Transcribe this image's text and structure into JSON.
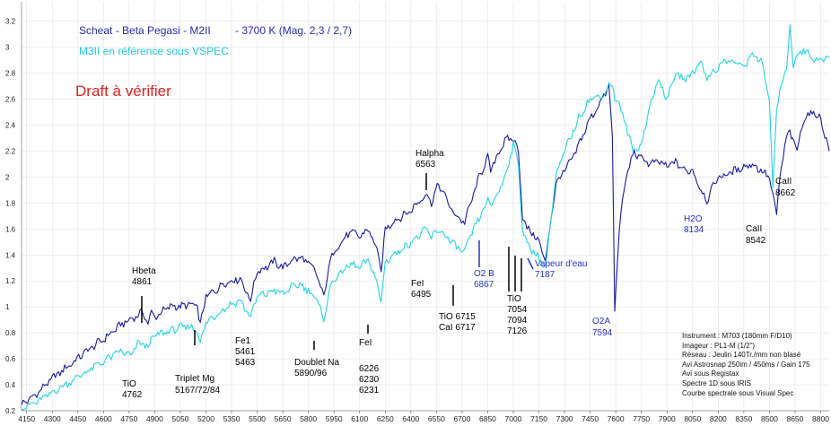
{
  "chart_data": {
    "type": "line",
    "title": "Scheat - Beta Pegasi - M2II",
    "title_suffix": "- 3700 K (Mag. 2,3 / 2,7)",
    "subtitle": "M3II en référence sous VSPEC",
    "draft_note": "Draft à vérifier",
    "xlim": [
      4120,
      8850
    ],
    "ylim": [
      0.2,
      3.35
    ],
    "x_ticks": [
      4150,
      4300,
      4450,
      4600,
      4750,
      4900,
      5050,
      5200,
      5350,
      5500,
      5650,
      5800,
      5950,
      6100,
      6250,
      6400,
      6550,
      6700,
      6850,
      7000,
      7150,
      7300,
      7450,
      7600,
      7750,
      7900,
      8050,
      8200,
      8350,
      8500,
      8650,
      8800
    ],
    "y_ticks": [
      0.2,
      0.4,
      0.6,
      0.8,
      1.0,
      1.2,
      1.4,
      1.6,
      1.8,
      2.0,
      2.2,
      2.4,
      2.6,
      2.8,
      3.0,
      3.2
    ],
    "y_tick_labels": [
      "0.2",
      "0.4",
      "0.6",
      "0.8",
      "1",
      "1.2",
      "1.4",
      "1.6",
      "1.8",
      "2",
      "2.2",
      "2.4",
      "2.6",
      "2.8",
      "3",
      "3.2"
    ],
    "series": [
      {
        "name": "Scheat - Beta Pegasi - M2II",
        "color": "#1a1aa0",
        "x": [
          4120,
          4200,
          4300,
          4400,
          4500,
          4600,
          4700,
          4780,
          4830,
          4861,
          4880,
          4900,
          4950,
          5000,
          5050,
          5100,
          5150,
          5167,
          5200,
          5250,
          5300,
          5350,
          5400,
          5461,
          5500,
          5550,
          5600,
          5650,
          5700,
          5750,
          5800,
          5850,
          5890,
          5930,
          5980,
          6050,
          6100,
          6150,
          6200,
          6226,
          6250,
          6300,
          6350,
          6400,
          6450,
          6495,
          6520,
          6563,
          6600,
          6650,
          6715,
          6750,
          6800,
          6850,
          6867,
          6900,
          6950,
          7000,
          7030,
          7054,
          7080,
          7100,
          7126,
          7150,
          7187,
          7250,
          7300,
          7350,
          7400,
          7450,
          7500,
          7540,
          7560,
          7580,
          7594,
          7620,
          7660,
          7700,
          7750,
          7800,
          7850,
          7900,
          7950,
          8000,
          8050,
          8100,
          8134,
          8160,
          8200,
          8250,
          8300,
          8350,
          8400,
          8450,
          8500,
          8520,
          8542,
          8560,
          8600,
          8620,
          8662,
          8700,
          8750,
          8800,
          8850
        ],
        "y": [
          0.25,
          0.32,
          0.45,
          0.55,
          0.66,
          0.75,
          0.86,
          0.92,
          0.96,
          0.88,
          0.95,
          0.92,
          0.97,
          1.01,
          1.0,
          1.02,
          1.0,
          0.86,
          1.08,
          1.12,
          1.18,
          1.2,
          1.22,
          1.05,
          1.28,
          1.3,
          1.35,
          1.3,
          1.36,
          1.38,
          1.34,
          1.25,
          1.07,
          1.38,
          1.48,
          1.58,
          1.54,
          1.6,
          1.45,
          1.27,
          1.6,
          1.66,
          1.7,
          1.74,
          1.82,
          1.87,
          1.8,
          1.95,
          1.85,
          1.72,
          1.65,
          1.8,
          2.0,
          2.15,
          2.05,
          2.15,
          2.28,
          2.3,
          2.2,
          1.7,
          1.6,
          1.58,
          1.55,
          1.5,
          1.35,
          1.95,
          2.05,
          2.15,
          2.3,
          2.45,
          2.55,
          2.65,
          2.7,
          2.3,
          0.98,
          1.6,
          2.0,
          2.18,
          2.15,
          2.1,
          2.12,
          2.08,
          2.12,
          2.05,
          2.05,
          1.9,
          1.82,
          1.9,
          2.0,
          2.02,
          2.05,
          2.08,
          2.1,
          2.05,
          2.0,
          1.85,
          1.7,
          2.0,
          2.3,
          2.35,
          2.2,
          2.45,
          2.5,
          2.45,
          2.2
        ]
      },
      {
        "name": "M3II en référence sous VSPEC",
        "color": "#22d4e0",
        "x": [
          4120,
          4200,
          4300,
          4400,
          4500,
          4600,
          4700,
          4762,
          4800,
          4861,
          4900,
          4950,
          5000,
          5050,
          5100,
          5150,
          5167,
          5200,
          5250,
          5300,
          5350,
          5400,
          5461,
          5500,
          5550,
          5600,
          5650,
          5700,
          5750,
          5800,
          5850,
          5890,
          5930,
          5980,
          6050,
          6100,
          6150,
          6200,
          6226,
          6250,
          6300,
          6350,
          6400,
          6450,
          6495,
          6520,
          6563,
          6600,
          6650,
          6715,
          6750,
          6800,
          6850,
          6867,
          6900,
          6950,
          7000,
          7030,
          7054,
          7080,
          7100,
          7126,
          7150,
          7187,
          7250,
          7300,
          7350,
          7400,
          7450,
          7500,
          7540,
          7560,
          7580,
          7594,
          7620,
          7660,
          7700,
          7750,
          7800,
          7850,
          7900,
          7950,
          8000,
          8050,
          8100,
          8134,
          8160,
          8200,
          8250,
          8300,
          8350,
          8400,
          8450,
          8500,
          8520,
          8542,
          8560,
          8600,
          8620,
          8640,
          8662,
          8700,
          8750,
          8800,
          8850
        ],
        "y": [
          0.22,
          0.26,
          0.34,
          0.42,
          0.5,
          0.58,
          0.66,
          0.62,
          0.72,
          0.7,
          0.78,
          0.8,
          0.82,
          0.84,
          0.85,
          0.82,
          0.72,
          0.88,
          0.93,
          0.98,
          1.02,
          1.05,
          0.92,
          1.08,
          1.1,
          1.13,
          1.1,
          1.15,
          1.17,
          1.13,
          1.05,
          0.9,
          1.17,
          1.25,
          1.33,
          1.3,
          1.36,
          1.2,
          1.03,
          1.35,
          1.4,
          1.45,
          1.5,
          1.55,
          1.6,
          1.53,
          1.6,
          1.55,
          1.48,
          1.42,
          1.55,
          1.68,
          1.82,
          1.78,
          1.85,
          2.0,
          2.25,
          2.1,
          1.6,
          1.48,
          1.45,
          1.42,
          1.38,
          1.3,
          2.0,
          2.2,
          2.35,
          2.5,
          2.6,
          2.62,
          2.65,
          2.72,
          2.7,
          2.62,
          2.55,
          2.4,
          2.2,
          2.25,
          2.55,
          2.75,
          2.6,
          2.8,
          2.75,
          2.8,
          2.9,
          2.75,
          2.8,
          2.85,
          2.9,
          2.88,
          2.85,
          2.95,
          2.9,
          2.6,
          1.9,
          2.5,
          2.7,
          2.8,
          3.2,
          2.85,
          2.95,
          2.98,
          2.92,
          2.9,
          2.92
        ]
      }
    ],
    "annotations": [
      {
        "lines": [
          "Hbeta",
          "4861"
        ],
        "color": "#000000"
      },
      {
        "lines": [
          "TiO",
          "4762"
        ],
        "color": "#000000"
      },
      {
        "lines": [
          "Triplet Mg",
          "5167/72/84"
        ],
        "color": "#000000"
      },
      {
        "lines": [
          "Fe1",
          "5461",
          "5463"
        ],
        "color": "#000000"
      },
      {
        "lines": [
          "Doublet Na",
          "5890/96"
        ],
        "color": "#000000"
      },
      {
        "lines": [
          "FeI",
          "6226",
          "6230",
          "6231"
        ],
        "color": "#000000"
      },
      {
        "lines": [
          "FeI",
          "6495"
        ],
        "color": "#000000"
      },
      {
        "lines": [
          "Halpha",
          "6563"
        ],
        "color": "#000000"
      },
      {
        "lines": [
          "TiO 6715",
          "CaI 6717"
        ],
        "color": "#000000"
      },
      {
        "lines": [
          "O2 B",
          "6867"
        ],
        "color": "#2233cc"
      },
      {
        "lines": [
          "TiO",
          "7054",
          "7094",
          "7126"
        ],
        "color": "#000000"
      },
      {
        "lines": [
          "Vapeur d'eau",
          "7187"
        ],
        "color": "#2233cc"
      },
      {
        "lines": [
          "O2A",
          "7594"
        ],
        "color": "#2233cc"
      },
      {
        "lines": [
          "H2O",
          "8134"
        ],
        "color": "#2233cc"
      },
      {
        "lines": [
          "CaII",
          "8542"
        ],
        "color": "#000000"
      },
      {
        "lines": [
          "CaII",
          "8662"
        ],
        "color": "#000000"
      }
    ]
  },
  "info_block": [
    "Instrument : M703 (180mm F/D10)",
    "Imageur : PL1-M (1/2\")",
    "Réseau : Jeulin 140Tr./mm non blasé",
    "Avi Astrosnap 250im / 450ms / Gain 175",
    "Avi sous Registax",
    "Spectre 1D sous IRIS",
    "Courbe spectrale sous Visual Spec"
  ]
}
